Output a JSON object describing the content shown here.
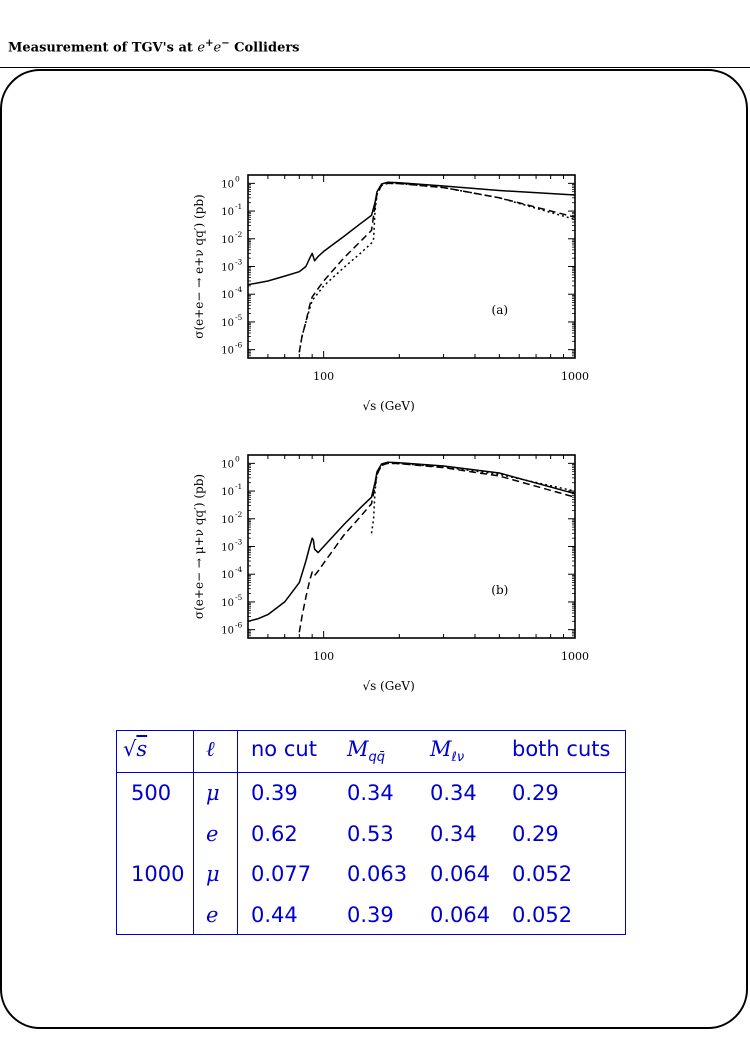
{
  "header": {
    "prefix": "Measurement of TGV's at",
    "e": "e",
    "plus": "+",
    "minus": "−",
    "suffix": "Colliders"
  },
  "figures": [
    {
      "panel": "(a)",
      "ylabel": "σ(e+e− → e+ν qq′) (pb)",
      "xlabel": "√s (GeV)",
      "xticks": [
        "100",
        "1000"
      ],
      "yticks": [
        "10^0",
        "10^-1",
        "10^-2",
        "10^-3",
        "10^-4",
        "10^-5",
        "10^-6"
      ]
    },
    {
      "panel": "(b)",
      "ylabel": "σ(e+e− → μ+ν qq′) (pb)",
      "xlabel": "√s (GeV)",
      "xticks": [
        "100",
        "1000"
      ],
      "yticks": [
        "10^0",
        "10^-1",
        "10^-2",
        "10^-3",
        "10^-4",
        "10^-5",
        "10^-6"
      ]
    }
  ],
  "chart_data": [
    {
      "type": "line",
      "panel": "(a)",
      "xlabel": "√s (GeV)",
      "ylabel": "σ(e+e− → e+ν qq′) (pb)",
      "xscale": "log",
      "yscale": "log",
      "xlim": [
        50,
        1000
      ],
      "ylim": [
        5e-07,
        2
      ],
      "series": [
        {
          "style": "solid",
          "x": [
            50,
            60,
            70,
            80,
            85,
            88,
            90,
            92,
            95,
            100,
            120,
            140,
            155,
            160,
            163,
            170,
            180,
            200,
            300,
            500,
            1000
          ],
          "y": [
            0.00022,
            0.0003,
            0.00045,
            0.00065,
            0.001,
            0.002,
            0.003,
            0.0016,
            0.0023,
            0.0035,
            0.012,
            0.035,
            0.07,
            0.2,
            0.5,
            0.95,
            1.1,
            1.05,
            0.8,
            0.55,
            0.38
          ]
        },
        {
          "style": "dashed",
          "x": [
            80,
            82,
            85,
            88,
            90,
            95,
            100,
            120,
            140,
            155,
            160,
            163,
            170,
            180,
            200,
            300,
            500,
            1000
          ],
          "y": [
            8e-07,
            3e-06,
            1e-05,
            4e-05,
            8e-05,
            0.00016,
            0.0003,
            0.002,
            0.008,
            0.02,
            0.15,
            0.4,
            0.85,
            1,
            0.98,
            0.7,
            0.3,
            0.06
          ]
        },
        {
          "style": "dotted",
          "x": [
            80,
            82,
            85,
            88,
            90,
            95,
            100,
            120,
            140,
            155,
            158,
            160,
            163,
            170,
            180,
            200,
            300,
            500,
            1000
          ],
          "y": [
            8e-07,
            3e-06,
            1e-05,
            3e-05,
            6e-05,
            0.00011,
            0.0002,
            0.0009,
            0.003,
            0.007,
            0.01,
            0.1,
            0.4,
            0.85,
            1,
            0.98,
            0.7,
            0.3,
            0.05
          ]
        }
      ]
    },
    {
      "type": "line",
      "panel": "(b)",
      "xlabel": "√s (GeV)",
      "ylabel": "σ(e+e− → μ+ν qq′) (pb)",
      "xscale": "log",
      "yscale": "log",
      "xlim": [
        50,
        1000
      ],
      "ylim": [
        5e-07,
        2
      ],
      "series": [
        {
          "style": "solid",
          "x": [
            50,
            55,
            60,
            70,
            80,
            85,
            88,
            90,
            91,
            92,
            95,
            100,
            120,
            140,
            155,
            160,
            163,
            170,
            180,
            200,
            300,
            500,
            1000
          ],
          "y": [
            2e-06,
            2.5e-06,
            3.5e-06,
            1e-05,
            5e-05,
            0.0003,
            0.001,
            0.002,
            0.0017,
            0.0008,
            0.0006,
            0.001,
            0.006,
            0.025,
            0.06,
            0.2,
            0.5,
            0.95,
            1.1,
            1.05,
            0.8,
            0.45,
            0.08
          ]
        },
        {
          "style": "dashed",
          "x": [
            80,
            82,
            85,
            88,
            90,
            92,
            95,
            100,
            120,
            140,
            155,
            160,
            163,
            170,
            180,
            200,
            300,
            500,
            1000
          ],
          "y": [
            8e-07,
            3e-06,
            1.5e-05,
            6e-05,
            0.00012,
            9e-05,
            0.00013,
            0.00025,
            0.0025,
            0.012,
            0.035,
            0.15,
            0.4,
            0.85,
            1,
            0.98,
            0.7,
            0.35,
            0.06
          ]
        },
        {
          "style": "dotted",
          "x": [
            155,
            158,
            160,
            163,
            170,
            180,
            200,
            300,
            500,
            1000
          ],
          "y": [
            0.003,
            0.01,
            0.1,
            0.4,
            0.85,
            1,
            0.98,
            0.75,
            0.4,
            0.1
          ]
        }
      ]
    }
  ],
  "table": {
    "headers": {
      "rs_radical": "√",
      "rs_var": "s",
      "lepton": "ℓ",
      "nocut": "no cut",
      "mqq_main": "M",
      "mqq_sub": "qq̄",
      "mlnu_main": "M",
      "mlnu_sub": "ℓν",
      "both": "both cuts"
    },
    "rows": [
      {
        "rs": "500",
        "lep": "μ",
        "nocut": "0.39",
        "mqq": "0.34",
        "mlnu": "0.34",
        "both": "0.29"
      },
      {
        "rs": "",
        "lep": "e",
        "nocut": "0.62",
        "mqq": "0.53",
        "mlnu": "0.34",
        "both": "0.29"
      },
      {
        "rs": "1000",
        "lep": "μ",
        "nocut": "0.077",
        "mqq": "0.063",
        "mlnu": "0.064",
        "both": "0.052"
      },
      {
        "rs": "",
        "lep": "e",
        "nocut": "0.44",
        "mqq": "0.39",
        "mlnu": "0.064",
        "both": "0.052"
      }
    ]
  }
}
